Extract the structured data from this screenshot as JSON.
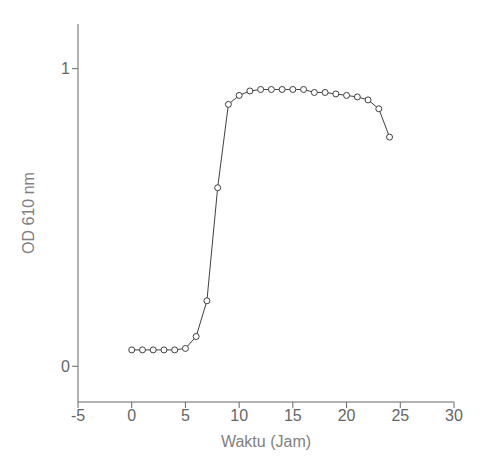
{
  "chart_data": {
    "type": "line",
    "xlabel": "Waktu (Jam)",
    "ylabel": "OD 610 nm",
    "x": [
      0,
      1,
      2,
      3,
      4,
      5,
      6,
      7,
      8,
      9,
      10,
      11,
      12,
      13,
      14,
      15,
      16,
      17,
      18,
      19,
      20,
      21,
      22,
      23,
      24
    ],
    "values": [
      0.055,
      0.055,
      0.055,
      0.055,
      0.055,
      0.06,
      0.1,
      0.22,
      0.6,
      0.88,
      0.91,
      0.925,
      0.93,
      0.93,
      0.93,
      0.93,
      0.93,
      0.92,
      0.92,
      0.915,
      0.91,
      0.905,
      0.895,
      0.865,
      0.77
    ],
    "xlim": [
      -5,
      30
    ],
    "ylim": [
      -0.12,
      1.15
    ],
    "xticks": [
      -5,
      0,
      5,
      10,
      15,
      20,
      25,
      30
    ],
    "yticks": [
      0,
      1
    ],
    "color": "#404040",
    "marker": "circle",
    "grid": false
  }
}
